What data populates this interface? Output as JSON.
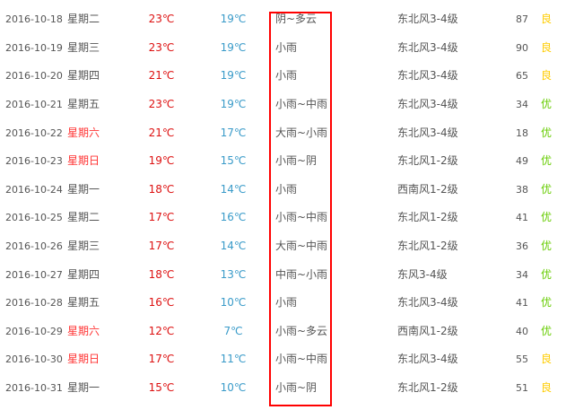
{
  "colors": {
    "weekend": "#ff3333",
    "high": "#dd1111",
    "low": "#3a9bc9",
    "good": "#ffcc00",
    "excellent": "#66cc00",
    "highlight_box": "#ff0000"
  },
  "rows": [
    {
      "date": "2016-10-18",
      "weekday": "星期二",
      "weekend": false,
      "high": "23℃",
      "low": "19℃",
      "weather": "阴~多云",
      "wind": "东北风3-4级",
      "aqi": "87",
      "quality": "良"
    },
    {
      "date": "2016-10-19",
      "weekday": "星期三",
      "weekend": false,
      "high": "23℃",
      "low": "19℃",
      "weather": "小雨",
      "wind": "东北风3-4级",
      "aqi": "90",
      "quality": "良"
    },
    {
      "date": "2016-10-20",
      "weekday": "星期四",
      "weekend": false,
      "high": "21℃",
      "low": "19℃",
      "weather": "小雨",
      "wind": "东北风3-4级",
      "aqi": "65",
      "quality": "良"
    },
    {
      "date": "2016-10-21",
      "weekday": "星期五",
      "weekend": false,
      "high": "23℃",
      "low": "19℃",
      "weather": "小雨~中雨",
      "wind": "东北风3-4级",
      "aqi": "34",
      "quality": "优"
    },
    {
      "date": "2016-10-22",
      "weekday": "星期六",
      "weekend": true,
      "high": "21℃",
      "low": "17℃",
      "weather": "大雨~小雨",
      "wind": "东北风3-4级",
      "aqi": "18",
      "quality": "优"
    },
    {
      "date": "2016-10-23",
      "weekday": "星期日",
      "weekend": true,
      "high": "19℃",
      "low": "15℃",
      "weather": "小雨~阴",
      "wind": "东北风1-2级",
      "aqi": "49",
      "quality": "优"
    },
    {
      "date": "2016-10-24",
      "weekday": "星期一",
      "weekend": false,
      "high": "18℃",
      "low": "14℃",
      "weather": "小雨",
      "wind": "西南风1-2级",
      "aqi": "38",
      "quality": "优"
    },
    {
      "date": "2016-10-25",
      "weekday": "星期二",
      "weekend": false,
      "high": "17℃",
      "low": "16℃",
      "weather": "小雨~中雨",
      "wind": "东北风1-2级",
      "aqi": "41",
      "quality": "优"
    },
    {
      "date": "2016-10-26",
      "weekday": "星期三",
      "weekend": false,
      "high": "17℃",
      "low": "14℃",
      "weather": "大雨~中雨",
      "wind": "东北风1-2级",
      "aqi": "36",
      "quality": "优"
    },
    {
      "date": "2016-10-27",
      "weekday": "星期四",
      "weekend": false,
      "high": "18℃",
      "low": "13℃",
      "weather": "中雨~小雨",
      "wind": "东风3-4级",
      "aqi": "34",
      "quality": "优"
    },
    {
      "date": "2016-10-28",
      "weekday": "星期五",
      "weekend": false,
      "high": "16℃",
      "low": "10℃",
      "weather": "小雨",
      "wind": "东北风3-4级",
      "aqi": "41",
      "quality": "优"
    },
    {
      "date": "2016-10-29",
      "weekday": "星期六",
      "weekend": true,
      "high": "12℃",
      "low": "7℃",
      "weather": "小雨~多云",
      "wind": "西南风1-2级",
      "aqi": "40",
      "quality": "优"
    },
    {
      "date": "2016-10-30",
      "weekday": "星期日",
      "weekend": true,
      "high": "17℃",
      "low": "11℃",
      "weather": "小雨~中雨",
      "wind": "东北风3-4级",
      "aqi": "55",
      "quality": "良"
    },
    {
      "date": "2016-10-31",
      "weekday": "星期一",
      "weekend": false,
      "high": "15℃",
      "low": "10℃",
      "weather": "小雨~阴",
      "wind": "东北风1-2级",
      "aqi": "51",
      "quality": "良"
    }
  ]
}
